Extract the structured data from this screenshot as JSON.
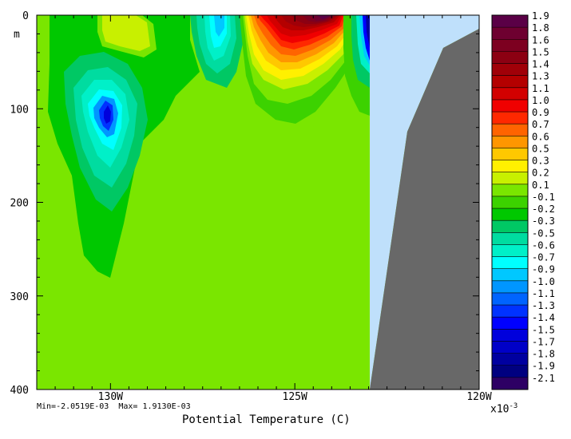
{
  "title": "Potential Temperature (C)",
  "stats": {
    "min_label": "Min=-2.0519E-03",
    "max_label": "Max= 1.9130E-03"
  },
  "colors": {
    "land": "#686868",
    "shelf": "#bfe0fb",
    "background": "#ffffff"
  },
  "chart_data": {
    "type": "heatmap",
    "title": "Potential Temperature (C)",
    "xlabel": "",
    "ylabel": "m",
    "xlim": [
      -132,
      -120
    ],
    "ylim": [
      400,
      0
    ],
    "x_ticks": [
      {
        "value": -130,
        "label": "130W"
      },
      {
        "value": -125,
        "label": "125W"
      },
      {
        "value": -120,
        "label": "120W"
      }
    ],
    "y_ticks": [
      {
        "value": 0,
        "label": "0"
      },
      {
        "value": 100,
        "label": "100"
      },
      {
        "value": 200,
        "label": "200"
      },
      {
        "value": 300,
        "label": "300"
      },
      {
        "value": 400,
        "label": "400"
      }
    ],
    "min": -0.0020519,
    "max": 0.001913,
    "colorbar": {
      "multiplier_base": "x10",
      "multiplier_exp": "-3",
      "levels": [
        "1.9",
        "1.8",
        "1.6",
        "1.5",
        "1.4",
        "1.3",
        "1.1",
        "1.0",
        "0.9",
        "0.7",
        "0.6",
        "0.5",
        "0.3",
        "0.2",
        "0.1",
        "-0.1",
        "-0.2",
        "-0.3",
        "-0.5",
        "-0.6",
        "-0.7",
        "-0.9",
        "-1.0",
        "-1.1",
        "-1.3",
        "-1.4",
        "-1.5",
        "-1.7",
        "-1.8",
        "-1.9",
        "-2.1"
      ],
      "colors": [
        "#5a0046",
        "#6e0030",
        "#7d0020",
        "#8c0012",
        "#a00008",
        "#b40000",
        "#d20000",
        "#f00000",
        "#ff2800",
        "#ff6400",
        "#ff9600",
        "#ffc800",
        "#fff000",
        "#c8f000",
        "#7ae600",
        "#3cd200",
        "#00c800",
        "#00c864",
        "#00dca0",
        "#00f0c8",
        "#00ffff",
        "#00c8ff",
        "#0096ff",
        "#0064ff",
        "#0032ff",
        "#0000ff",
        "#0000dc",
        "#0000c8",
        "#0000a0",
        "#000080",
        "#2d0064"
      ]
    }
  }
}
